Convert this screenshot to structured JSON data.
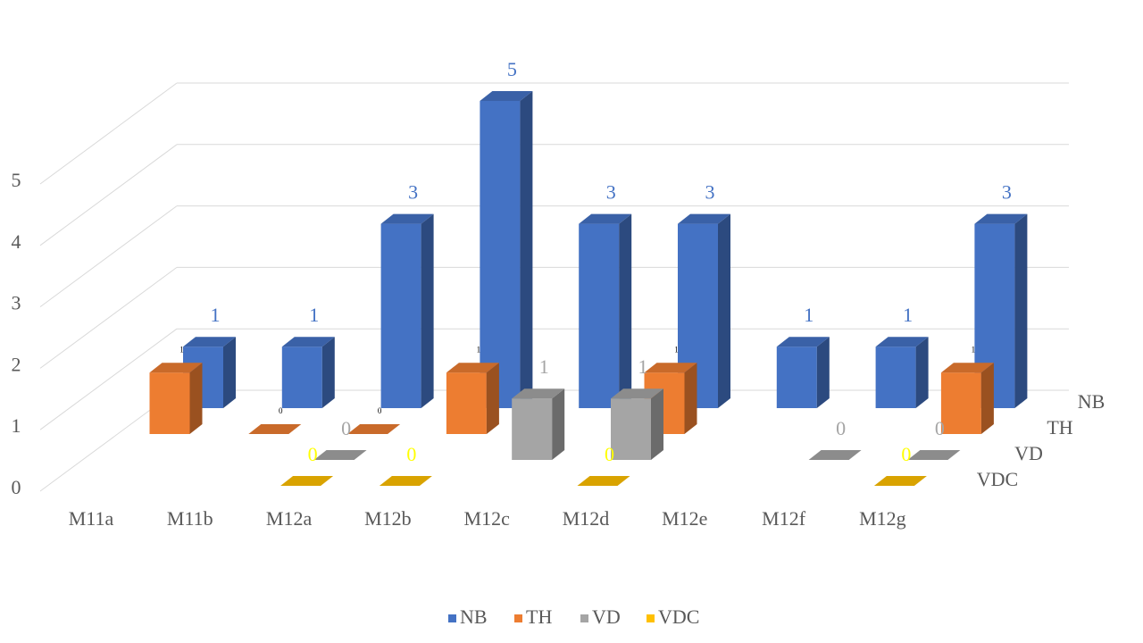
{
  "chart_data": {
    "type": "bar3d",
    "categories": [
      "M11a",
      "M11b",
      "M12a",
      "M12b",
      "M12c",
      "M12d",
      "M12e",
      "M12f",
      "M12g"
    ],
    "series": [
      {
        "name": "NB",
        "color": "#4472c4",
        "values": [
          1,
          1,
          3,
          5,
          3,
          3,
          1,
          1,
          3
        ]
      },
      {
        "name": "TH",
        "color": "#ed7d31",
        "values": [
          1,
          0,
          0,
          1,
          null,
          1,
          null,
          null,
          1
        ]
      },
      {
        "name": "VD",
        "color": "#a5a5a5",
        "values": [
          null,
          null,
          0,
          null,
          1,
          1,
          null,
          0,
          0
        ]
      },
      {
        "name": "VDC",
        "color": "#ffc000",
        "values": [
          null,
          null,
          0,
          0,
          null,
          0,
          null,
          null,
          0
        ]
      }
    ],
    "ylim": [
      0,
      5
    ],
    "yticks": [
      0,
      1,
      2,
      3,
      4,
      5
    ],
    "grid": true,
    "legend": "bottom"
  }
}
